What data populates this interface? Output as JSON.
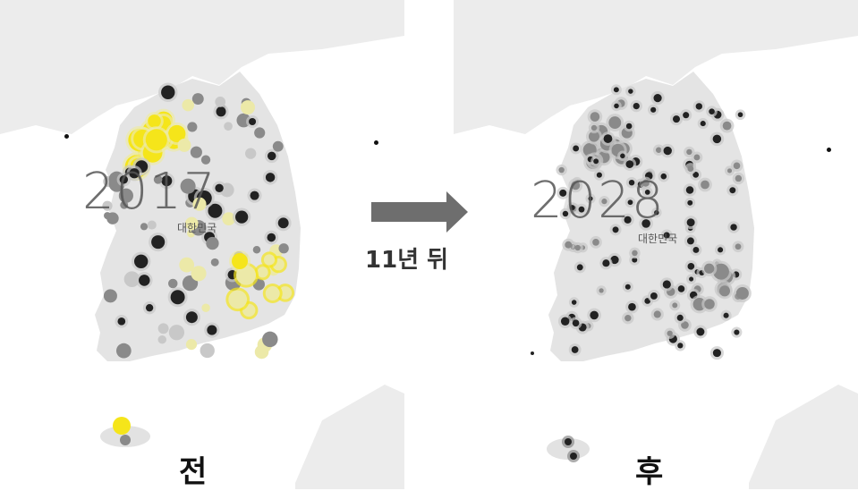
{
  "left_map": {
    "year": "2017",
    "country_label": "대한민국",
    "caption": "전"
  },
  "right_map": {
    "year": "2028",
    "country_label": "대한민국",
    "caption": "후"
  },
  "transition": {
    "label": "11년 뒤",
    "arrow_icon": "right-arrow-icon"
  },
  "colors": {
    "land": "#e6e6e6",
    "sea": "#ffffff",
    "neighbor_land": "#ececec",
    "dot_dark": "#222222",
    "dot_mid": "#8a8a8a",
    "dot_light": "#c8c8c8",
    "dot_yellow": "#f5e51a",
    "dot_pale_yellow": "#ece9a8",
    "arrow": "#6e6e6e"
  }
}
